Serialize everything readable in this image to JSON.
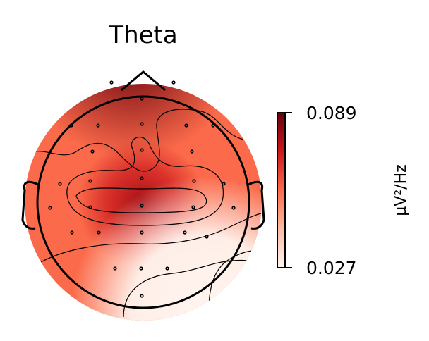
{
  "chart_data": {
    "type": "heatmap",
    "subtype": "eeg-topomap",
    "title": "Theta",
    "colormap": "Reds",
    "colors": {
      "low": "#fff5f0",
      "mid": "#fb6a4a",
      "high": "#67000d",
      "outline": "#000000"
    },
    "colorbar": {
      "min": 0.027,
      "max": 0.089,
      "min_label": "0.027",
      "max_label": "0.089",
      "unit": "µV²/Hz"
    },
    "sensors_count": 30
  }
}
